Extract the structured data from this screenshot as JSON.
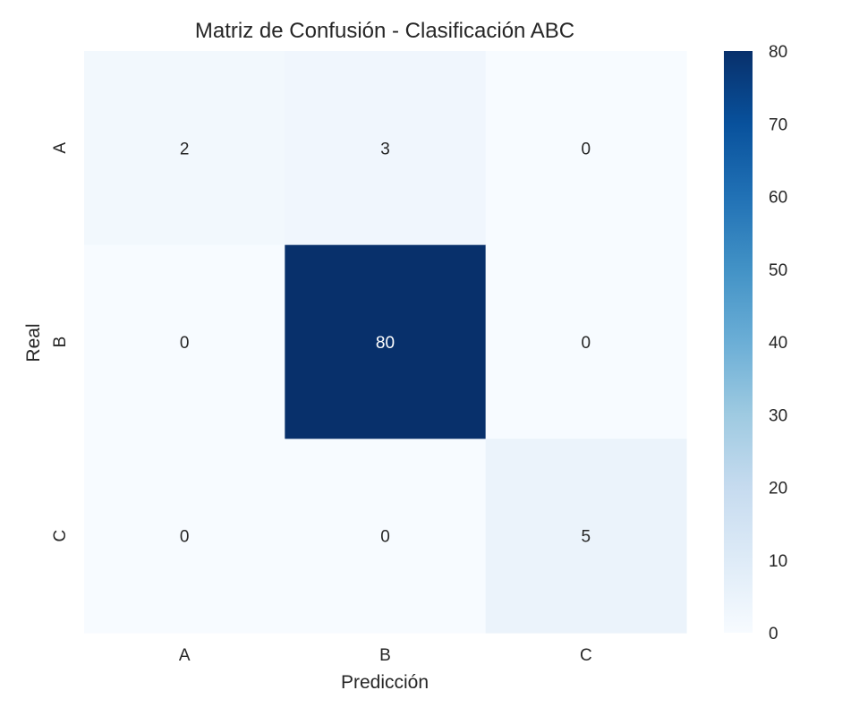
{
  "chart_data": {
    "type": "heatmap",
    "title": "Matriz de Confusión - Clasificación ABC",
    "xlabel": "Predicción",
    "ylabel": "Real",
    "x_categories": [
      "A",
      "B",
      "C"
    ],
    "y_categories": [
      "A",
      "B",
      "C"
    ],
    "values": [
      [
        2,
        3,
        0
      ],
      [
        0,
        80,
        0
      ],
      [
        0,
        0,
        5
      ]
    ],
    "colorbar": {
      "min": 0,
      "max": 80,
      "ticks": [
        "0",
        "10",
        "20",
        "30",
        "40",
        "50",
        "60",
        "70",
        "80"
      ]
    },
    "colormap": "Blues",
    "colors": {
      "low": "#f7fbff",
      "high": "#08306b",
      "text_dark": "#262626",
      "text_light": "#ffffff"
    },
    "grid": false,
    "legend": "colorbar-right"
  }
}
